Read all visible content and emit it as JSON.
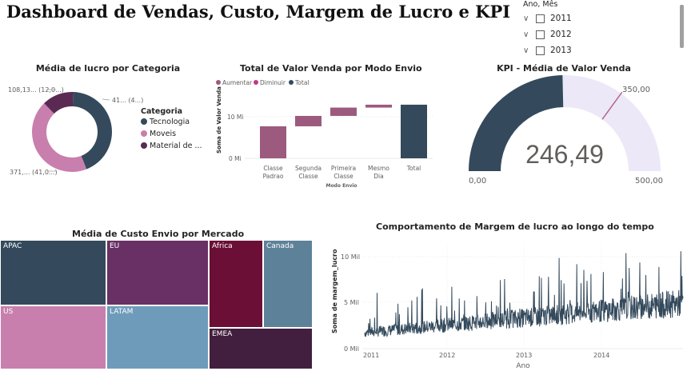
{
  "page_title": "Dashboard de Vendas, Custo, Margem de Lucro e KPI",
  "slicer": {
    "header": "Ano, Mês",
    "items": [
      {
        "label": "2011"
      },
      {
        "label": "2012"
      },
      {
        "label": "2013"
      }
    ]
  },
  "donut": {
    "title": "Média de lucro por Categoria",
    "legend_title": "Categoria",
    "labels": {
      "top_right": "41... (4...)",
      "top_left": "108,13... (12,0...)",
      "bottom_left": "371,... (41,0...)"
    },
    "legend": [
      {
        "name": "Tecnologia",
        "color": "#344a5c"
      },
      {
        "name": "Moveis",
        "color": "#c87fad"
      },
      {
        "name": "Material de ...",
        "color": "#5a2a52"
      }
    ]
  },
  "chart_data": [
    {
      "type": "pie",
      "title": "Média de lucro por Categoria",
      "categories": [
        "Tecnologia",
        "Moveis",
        "Material de ..."
      ],
      "values": [
        41,
        41,
        12
      ]
    },
    {
      "type": "bar",
      "subtype": "waterfall",
      "title": "Total de Valor Venda por Modo Envio",
      "categories": [
        "Classe Padrao",
        "Segunda Classe",
        "Primeira Classe",
        "Mesmo Dia",
        "Total"
      ],
      "values": [
        7.7,
        2.5,
        2.0,
        0.7,
        12.9
      ],
      "xlabel": "Modo Envio",
      "ylabel": "Soma de Valor Venda",
      "yticks": [
        "0 Mi",
        "10 Mi"
      ],
      "legend": [
        "Aumentar",
        "Diminuir",
        "Total"
      ]
    },
    {
      "type": "gauge",
      "title": "KPI - Média de Valor Venda",
      "value": 246.49,
      "min": 0,
      "max": 500,
      "target": 350
    },
    {
      "type": "heatmap",
      "subtype": "treemap",
      "title": "Média de Custo Envio por Mercado",
      "categories": [
        "APAC",
        "EU",
        "Africa",
        "Canada",
        "US",
        "LATAM",
        "EMEA"
      ]
    },
    {
      "type": "line",
      "title": "Comportamento de Margem de lucro ao longo do tempo",
      "xlabel": "Ano",
      "ylabel": "Soma de margem_lucro",
      "xticks": [
        "2011",
        "2012",
        "2013",
        "2014"
      ],
      "yticks": [
        "0 Mil",
        "5 Mil",
        "10 Mil"
      ],
      "ylim": [
        0,
        11
      ]
    }
  ],
  "waterfall": {
    "title": "Total de Valor Venda por Modo Envio",
    "ylabel": "Soma de Valor Venda",
    "xlabel": "Modo Envio",
    "legend": [
      {
        "name": "Aumentar",
        "color": "#9c5a7e"
      },
      {
        "name": "Diminuir",
        "color": "#c2378a"
      },
      {
        "name": "Total",
        "color": "#344a5c"
      }
    ],
    "yticks": [
      "10 Mi",
      "0 Mi"
    ],
    "categories": [
      [
        "Classe",
        "Padrao"
      ],
      [
        "Segunda",
        "Classe"
      ],
      [
        "Primeira",
        "Classe"
      ],
      [
        "Mesmo",
        "Dia"
      ],
      [
        "Total",
        ""
      ]
    ]
  },
  "gauge": {
    "title": "KPI - Média de Valor Venda",
    "value": "246,49",
    "min_label": "0,00",
    "max_label": "500,00",
    "target_label": "350,00",
    "colors": {
      "fill": "#344a5c",
      "bg": "#ece8f7",
      "target": "#b4668a"
    }
  },
  "treemap": {
    "title": "Média de Custo Envio por Mercado",
    "cells": [
      {
        "label": "APAC",
        "color": "#344a5c"
      },
      {
        "label": "EU",
        "color": "#683064"
      },
      {
        "label": "Africa",
        "color": "#6b0f36"
      },
      {
        "label": "Canada",
        "color": "#5d8198"
      },
      {
        "label": "US",
        "color": "#c87fad"
      },
      {
        "label": "LATAM",
        "color": "#6f9bbb"
      },
      {
        "label": "EMEA",
        "color": "#421f3e"
      }
    ]
  },
  "linechart": {
    "title": "Comportamento de Margem de lucro ao longo do tempo",
    "ylabel": "Soma de margem_lucro",
    "xlabel": "Ano",
    "yticks": [
      "10 Mil",
      "5 Mil",
      "0 Mil"
    ],
    "xticks": [
      "2011",
      "2012",
      "2013",
      "2014"
    ],
    "color": "#344a5c"
  }
}
